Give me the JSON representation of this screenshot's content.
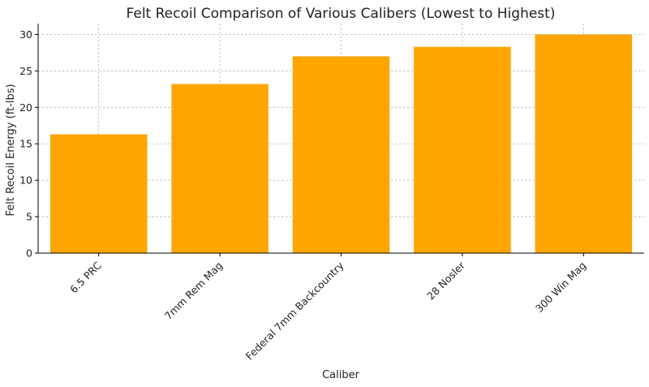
{
  "chart_data": {
    "type": "bar",
    "title": "Felt Recoil Comparison of Various Calibers (Lowest to Highest)",
    "xlabel": "Caliber",
    "ylabel": "Felt Recoil Energy (ft-lbs)",
    "categories": [
      "6.5 PRC",
      "7mm Rem Mag",
      "Federal 7mm Backcountry",
      "28 Nosler",
      "300 Win Mag"
    ],
    "values": [
      16.3,
      23.2,
      27.0,
      28.3,
      30.0
    ],
    "ylim": [
      0,
      31.5
    ],
    "yticks": [
      0,
      5,
      10,
      15,
      20,
      25,
      30
    ],
    "grid": true,
    "bar_color": "#FFA500"
  }
}
